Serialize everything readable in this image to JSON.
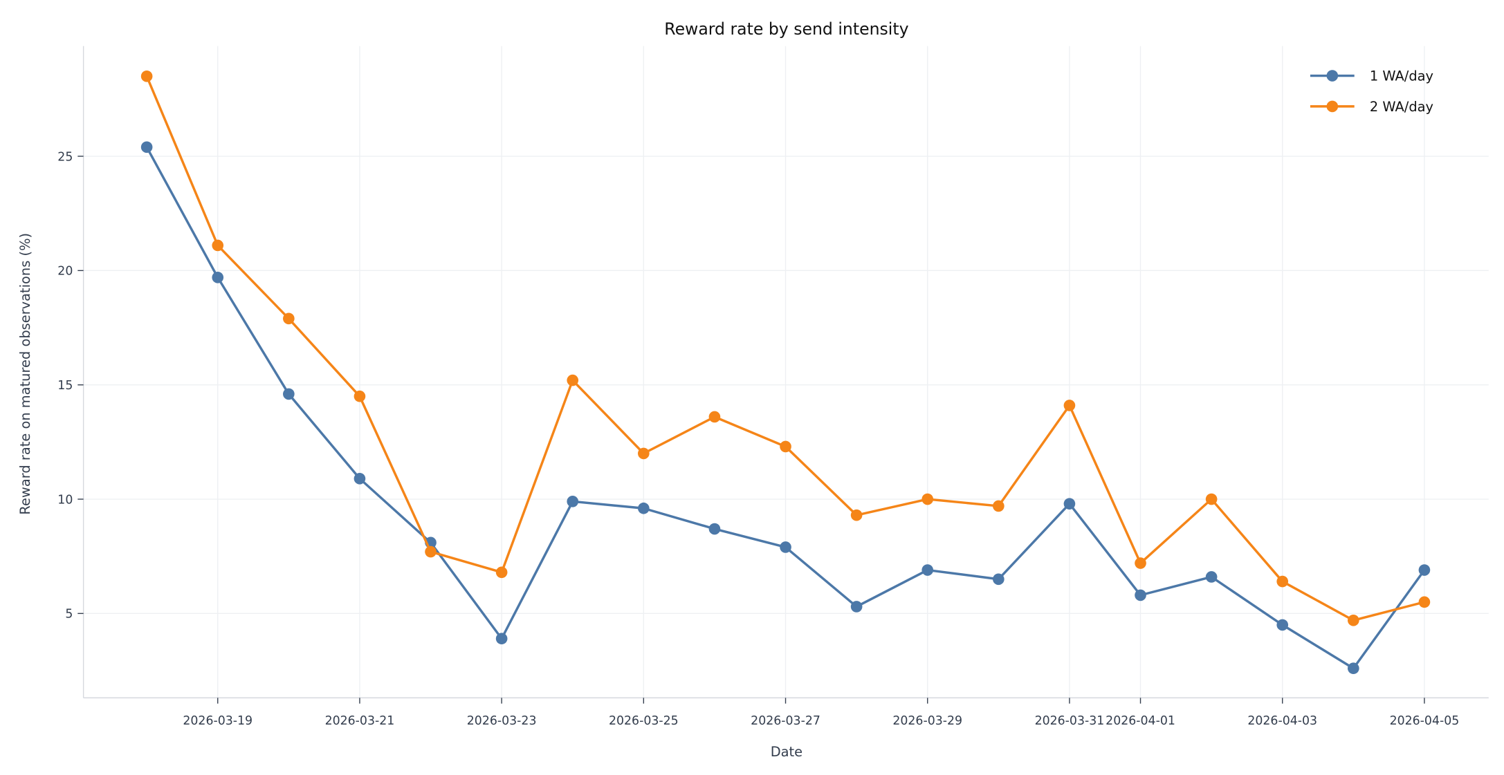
{
  "chart_data": {
    "type": "line",
    "title": "Reward rate by send intensity",
    "xlabel": "Date",
    "ylabel": "Reward rate on matured observations (%)",
    "x": [
      "2026-03-18",
      "2026-03-19",
      "2026-03-20",
      "2026-03-21",
      "2026-03-22",
      "2026-03-23",
      "2026-03-24",
      "2026-03-25",
      "2026-03-26",
      "2026-03-27",
      "2026-03-28",
      "2026-03-29",
      "2026-03-30",
      "2026-03-31",
      "2026-04-01",
      "2026-04-02",
      "2026-04-03",
      "2026-04-04",
      "2026-04-05"
    ],
    "x_ticks": [
      "2026-03-19",
      "2026-03-21",
      "2026-03-23",
      "2026-03-25",
      "2026-03-27",
      "2026-03-29",
      "2026-03-31",
      "2026-04-01",
      "2026-04-03",
      "2026-04-05"
    ],
    "y_ticks": [
      5,
      10,
      15,
      20,
      25
    ],
    "ylim": [
      1.4,
      29.7
    ],
    "xlim": [
      "2026-03-17",
      "2026-04-06"
    ],
    "grid": true,
    "legend_position": "top-right",
    "series": [
      {
        "name": "1 WA/day",
        "color": "#4c78a8",
        "values": [
          25.4,
          19.7,
          14.6,
          10.9,
          8.1,
          3.9,
          9.9,
          9.6,
          8.7,
          7.9,
          5.3,
          6.9,
          6.5,
          9.8,
          5.8,
          6.6,
          4.5,
          2.6,
          6.9
        ]
      },
      {
        "name": "2 WA/day",
        "color": "#f58518",
        "values": [
          28.5,
          21.1,
          17.9,
          14.5,
          7.7,
          6.8,
          15.2,
          12.0,
          13.6,
          12.3,
          9.3,
          10.0,
          9.7,
          14.1,
          7.2,
          10.0,
          6.4,
          4.7,
          5.5
        ]
      }
    ]
  }
}
